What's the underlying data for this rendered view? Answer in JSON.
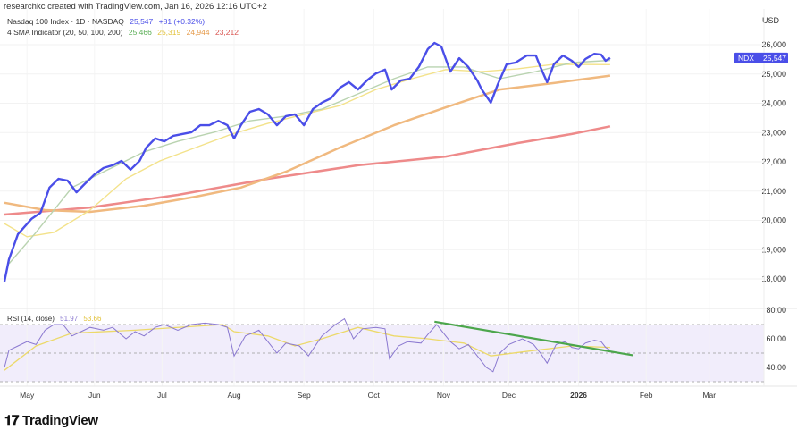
{
  "header": "researchkc created with TradingView.com, Jan 16, 2026 12:16 UTC+2",
  "legend": {
    "symbol": "Nasdaq 100 Index · 1D · NASDAQ",
    "price": "25,547",
    "change": "+81 (+0.32%)",
    "sma_label": "4 SMA Indicator (20, 50, 100, 200)",
    "sma_values": [
      "25,466",
      "25,319",
      "24,944",
      "23,212"
    ],
    "rsi_label": "RSI (14, close)",
    "rsi_value": "51.97",
    "rsi_signal": "53.66"
  },
  "logo": "TradingView",
  "colors": {
    "ndx": "#4a4ee8",
    "sma20": "#b9d3b0",
    "sma50": "#f3e28a",
    "sma100": "#f0b97f",
    "sma200": "#ee8a8a",
    "rsi": "#8a78d0",
    "rsi_sma": "#ecd96a",
    "trend": "#4ca64c",
    "rsi_bg": "#f1edfb"
  },
  "chart_data": {
    "type": "line",
    "x_unit": "days since Apr 21 2025",
    "currency": "USD",
    "price_axis": {
      "ylim": [
        17000,
        26500
      ],
      "ticks": [
        18000,
        19000,
        20000,
        21000,
        22000,
        23000,
        24000,
        25000,
        26000
      ],
      "tick_labels": [
        "18,000",
        "19,000",
        "20,000",
        "21,000",
        "22,000",
        "23,000",
        "24,000",
        "25,000",
        "26,000"
      ]
    },
    "last_label": {
      "symbol": "NDX",
      "value": "25,547"
    },
    "x_ticks": [
      {
        "label": "May",
        "day": 10
      },
      {
        "label": "Jun",
        "day": 40
      },
      {
        "label": "Jul",
        "day": 70
      },
      {
        "label": "Aug",
        "day": 102
      },
      {
        "label": "Sep",
        "day": 133
      },
      {
        "label": "Oct",
        "day": 164
      },
      {
        "label": "Nov",
        "day": 195
      },
      {
        "label": "Dec",
        "day": 224
      },
      {
        "label": "2026",
        "day": 255
      },
      {
        "label": "Feb",
        "day": 285
      },
      {
        "label": "Mar",
        "day": 313
      }
    ],
    "series": [
      {
        "name": "NDX",
        "color_key": "ndx",
        "points": [
          [
            0,
            17910
          ],
          [
            2,
            18670
          ],
          [
            6,
            19530
          ],
          [
            12,
            20050
          ],
          [
            16,
            20260
          ],
          [
            20,
            21120
          ],
          [
            24,
            21420
          ],
          [
            28,
            21360
          ],
          [
            32,
            20960
          ],
          [
            36,
            21270
          ],
          [
            40,
            21570
          ],
          [
            44,
            21790
          ],
          [
            48,
            21880
          ],
          [
            52,
            22030
          ],
          [
            56,
            21730
          ],
          [
            60,
            22030
          ],
          [
            63,
            22490
          ],
          [
            67,
            22800
          ],
          [
            71,
            22700
          ],
          [
            75,
            22890
          ],
          [
            79,
            22950
          ],
          [
            83,
            23010
          ],
          [
            87,
            23250
          ],
          [
            91,
            23250
          ],
          [
            95,
            23400
          ],
          [
            99,
            23250
          ],
          [
            102,
            22800
          ],
          [
            105,
            23250
          ],
          [
            109,
            23710
          ],
          [
            113,
            23800
          ],
          [
            117,
            23620
          ],
          [
            121,
            23250
          ],
          [
            125,
            23560
          ],
          [
            129,
            23620
          ],
          [
            133,
            23250
          ],
          [
            137,
            23800
          ],
          [
            141,
            24020
          ],
          [
            145,
            24170
          ],
          [
            149,
            24530
          ],
          [
            153,
            24720
          ],
          [
            157,
            24470
          ],
          [
            161,
            24780
          ],
          [
            165,
            25020
          ],
          [
            169,
            25150
          ],
          [
            172,
            24470
          ],
          [
            176,
            24780
          ],
          [
            180,
            24840
          ],
          [
            184,
            25240
          ],
          [
            188,
            25850
          ],
          [
            191,
            26060
          ],
          [
            194,
            25940
          ],
          [
            198,
            25080
          ],
          [
            202,
            25540
          ],
          [
            206,
            25240
          ],
          [
            210,
            24780
          ],
          [
            212,
            24470
          ],
          [
            216,
            24020
          ],
          [
            219,
            24630
          ],
          [
            223,
            25330
          ],
          [
            227,
            25390
          ],
          [
            232,
            25630
          ],
          [
            236,
            25630
          ],
          [
            238,
            25240
          ],
          [
            241,
            24720
          ],
          [
            244,
            25330
          ],
          [
            248,
            25630
          ],
          [
            252,
            25450
          ],
          [
            255,
            25240
          ],
          [
            258,
            25510
          ],
          [
            262,
            25690
          ],
          [
            265,
            25660
          ],
          [
            267,
            25450
          ],
          [
            269,
            25547
          ]
        ]
      },
      {
        "name": "SMA 20",
        "color_key": "sma20",
        "points": [
          [
            2,
            18520
          ],
          [
            14,
            19590
          ],
          [
            30,
            21120
          ],
          [
            46,
            21730
          ],
          [
            62,
            22340
          ],
          [
            77,
            22700
          ],
          [
            93,
            23010
          ],
          [
            109,
            23400
          ],
          [
            125,
            23560
          ],
          [
            141,
            23800
          ],
          [
            157,
            24320
          ],
          [
            173,
            24840
          ],
          [
            188,
            25240
          ],
          [
            204,
            25240
          ],
          [
            220,
            24840
          ],
          [
            236,
            25080
          ],
          [
            252,
            25390
          ],
          [
            269,
            25466
          ]
        ]
      },
      {
        "name": "SMA 50",
        "color_key": "sma50",
        "points": [
          [
            0,
            19890
          ],
          [
            10,
            19440
          ],
          [
            22,
            19590
          ],
          [
            38,
            20350
          ],
          [
            54,
            21420
          ],
          [
            69,
            22030
          ],
          [
            85,
            22490
          ],
          [
            101,
            22950
          ],
          [
            117,
            23310
          ],
          [
            133,
            23620
          ],
          [
            149,
            23920
          ],
          [
            165,
            24470
          ],
          [
            181,
            24840
          ],
          [
            196,
            25150
          ],
          [
            212,
            25080
          ],
          [
            228,
            25180
          ],
          [
            244,
            25330
          ],
          [
            269,
            25319
          ]
        ]
      },
      {
        "name": "SMA 100",
        "color_key": "sma100",
        "points": [
          [
            0,
            20600
          ],
          [
            18,
            20350
          ],
          [
            38,
            20290
          ],
          [
            62,
            20500
          ],
          [
            85,
            20810
          ],
          [
            105,
            21120
          ],
          [
            125,
            21660
          ],
          [
            149,
            22490
          ],
          [
            173,
            23250
          ],
          [
            196,
            23860
          ],
          [
            220,
            24470
          ],
          [
            244,
            24690
          ],
          [
            269,
            24944
          ]
        ]
      },
      {
        "name": "SMA 200",
        "color_key": "sma200",
        "points": [
          [
            0,
            20200
          ],
          [
            38,
            20440
          ],
          [
            77,
            20870
          ],
          [
            117,
            21420
          ],
          [
            157,
            21880
          ],
          [
            196,
            22180
          ],
          [
            228,
            22640
          ],
          [
            252,
            22950
          ],
          [
            269,
            23212
          ]
        ]
      }
    ],
    "rsi": {
      "ylim": [
        25,
        82
      ],
      "ticks": [
        40,
        60,
        80
      ],
      "tick_labels": [
        "40.00",
        "60.00",
        "80.00"
      ],
      "bands": [
        30,
        50,
        70
      ],
      "rsi_points": [
        [
          0,
          40
        ],
        [
          2,
          52
        ],
        [
          6,
          55
        ],
        [
          10,
          58
        ],
        [
          14,
          56
        ],
        [
          18,
          66
        ],
        [
          22,
          70
        ],
        [
          26,
          70
        ],
        [
          30,
          62
        ],
        [
          34,
          65
        ],
        [
          38,
          68
        ],
        [
          44,
          66
        ],
        [
          48,
          68
        ],
        [
          54,
          60
        ],
        [
          58,
          65
        ],
        [
          62,
          62
        ],
        [
          67,
          68
        ],
        [
          71,
          70
        ],
        [
          77,
          66
        ],
        [
          83,
          70
        ],
        [
          89,
          71
        ],
        [
          95,
          70
        ],
        [
          99,
          68
        ],
        [
          102,
          48
        ],
        [
          107,
          62
        ],
        [
          113,
          66
        ],
        [
          117,
          58
        ],
        [
          121,
          50
        ],
        [
          125,
          57
        ],
        [
          131,
          55
        ],
        [
          135,
          48
        ],
        [
          141,
          62
        ],
        [
          147,
          70
        ],
        [
          151,
          74
        ],
        [
          155,
          60
        ],
        [
          159,
          67
        ],
        [
          165,
          68
        ],
        [
          169,
          67
        ],
        [
          171,
          46
        ],
        [
          175,
          55
        ],
        [
          179,
          58
        ],
        [
          185,
          57
        ],
        [
          188,
          63
        ],
        [
          192,
          70
        ],
        [
          196,
          62
        ],
        [
          198,
          58
        ],
        [
          202,
          53
        ],
        [
          206,
          56
        ],
        [
          210,
          48
        ],
        [
          214,
          40
        ],
        [
          217,
          37
        ],
        [
          220,
          50
        ],
        [
          224,
          56
        ],
        [
          230,
          60
        ],
        [
          235,
          56
        ],
        [
          238,
          50
        ],
        [
          241,
          43
        ],
        [
          245,
          56
        ],
        [
          249,
          58
        ],
        [
          252,
          54
        ],
        [
          255,
          53
        ],
        [
          258,
          57
        ],
        [
          262,
          59
        ],
        [
          265,
          58
        ],
        [
          267,
          54
        ],
        [
          269,
          52
        ]
      ],
      "signal_points": [
        [
          0,
          38
        ],
        [
          14,
          55
        ],
        [
          30,
          64
        ],
        [
          58,
          66
        ],
        [
          97,
          70
        ],
        [
          102,
          65
        ],
        [
          117,
          62
        ],
        [
          129,
          55
        ],
        [
          141,
          60
        ],
        [
          157,
          68
        ],
        [
          173,
          62
        ],
        [
          188,
          60
        ],
        [
          204,
          57
        ],
        [
          216,
          48
        ],
        [
          236,
          52
        ],
        [
          252,
          55
        ],
        [
          269,
          54
        ]
      ],
      "trendline": [
        [
          191,
          72
        ],
        [
          279,
          48.5
        ]
      ]
    }
  }
}
